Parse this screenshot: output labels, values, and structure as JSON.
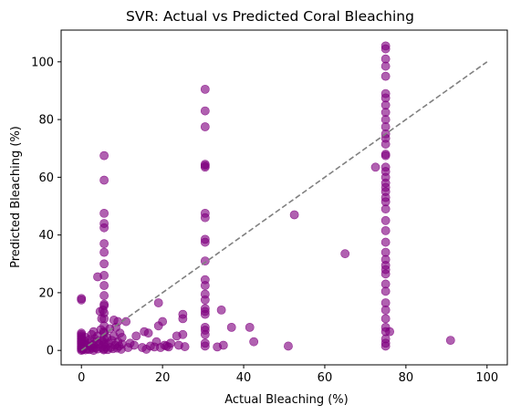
{
  "chart_data": {
    "type": "scatter",
    "title": "SVR: Actual vs Predicted Coral Bleaching",
    "xlabel": "Actual Bleaching (%)",
    "ylabel": "Predicted Bleaching (%)",
    "xlim": [
      -5,
      105
    ],
    "ylim": [
      -5,
      111
    ],
    "xticks": [
      0,
      20,
      40,
      60,
      80,
      100
    ],
    "yticks": [
      0,
      20,
      40,
      60,
      80,
      100
    ],
    "grid": false,
    "point_color": "#800080",
    "reference_line": {
      "x": [
        0,
        100
      ],
      "y": [
        0,
        100
      ],
      "color": "#808080",
      "style": "dashed"
    },
    "series": [
      {
        "points": [
          [
            0,
            0
          ],
          [
            0,
            0.5
          ],
          [
            0,
            1
          ],
          [
            0,
            1.5
          ],
          [
            0,
            2
          ],
          [
            0,
            2.5
          ],
          [
            0,
            3
          ],
          [
            0,
            3.5
          ],
          [
            0,
            4
          ],
          [
            0,
            4.5
          ],
          [
            0,
            5
          ],
          [
            0,
            5.5
          ],
          [
            0,
            6
          ],
          [
            0,
            17.5
          ],
          [
            0,
            18
          ],
          [
            0.3,
            0.3
          ],
          [
            0.5,
            1.2
          ],
          [
            0.6,
            2.2
          ],
          [
            0.8,
            3.2
          ],
          [
            1,
            0.2
          ],
          [
            1,
            4.5
          ],
          [
            1.2,
            1.8
          ],
          [
            1.5,
            0.5
          ],
          [
            1.8,
            2.5
          ],
          [
            2,
            0.3
          ],
          [
            2,
            3.8
          ],
          [
            2.2,
            1.5
          ],
          [
            2.5,
            5.5
          ],
          [
            2.8,
            0.8
          ],
          [
            3,
            0
          ],
          [
            3,
            2
          ],
          [
            3,
            6.5
          ],
          [
            3.3,
            4
          ],
          [
            3.5,
            1
          ],
          [
            3.7,
            3
          ],
          [
            4,
            25.5
          ],
          [
            4,
            0.5
          ],
          [
            4,
            5
          ],
          [
            4.3,
            2.2
          ],
          [
            4.6,
            13.5
          ],
          [
            4.8,
            7.2
          ],
          [
            5,
            1
          ],
          [
            5,
            3.5
          ],
          [
            5,
            11
          ],
          [
            5.3,
            14
          ],
          [
            5.5,
            0.2
          ],
          [
            5.5,
            2.8
          ],
          [
            5.5,
            6.5
          ],
          [
            5.6,
            67.5
          ],
          [
            5.6,
            59
          ],
          [
            5.6,
            47.5
          ],
          [
            5.6,
            44
          ],
          [
            5.6,
            42.5
          ],
          [
            5.6,
            37
          ],
          [
            5.6,
            34
          ],
          [
            5.6,
            30
          ],
          [
            5.6,
            26
          ],
          [
            5.6,
            22.5
          ],
          [
            5.6,
            19
          ],
          [
            5.6,
            16
          ],
          [
            5.6,
            15.5
          ],
          [
            5.6,
            13
          ],
          [
            5.6,
            11
          ],
          [
            5.6,
            8.5
          ],
          [
            5.6,
            6
          ],
          [
            5.6,
            4
          ],
          [
            5.6,
            2
          ],
          [
            5.6,
            0.5
          ],
          [
            6,
            1.2
          ],
          [
            6.3,
            4.5
          ],
          [
            6.5,
            0.3
          ],
          [
            6.8,
            2.5
          ],
          [
            7,
            7.5
          ],
          [
            7.2,
            1
          ],
          [
            7.5,
            3.5
          ],
          [
            7.8,
            0.6
          ],
          [
            8,
            5
          ],
          [
            8,
            10.5
          ],
          [
            8.3,
            1.8
          ],
          [
            8.5,
            8
          ],
          [
            8.8,
            0.8
          ],
          [
            9,
            3
          ],
          [
            9,
            10
          ],
          [
            9.3,
            1.5
          ],
          [
            9.5,
            6
          ],
          [
            9.8,
            0.4
          ],
          [
            10,
            2.2
          ],
          [
            10,
            4.5
          ],
          [
            11,
            10
          ],
          [
            11.5,
            1
          ],
          [
            12,
            2.5
          ],
          [
            13,
            1.8
          ],
          [
            13.5,
            5
          ],
          [
            15,
            1
          ],
          [
            15.5,
            6.5
          ],
          [
            16,
            0.4
          ],
          [
            16.5,
            6
          ],
          [
            17,
            1.5
          ],
          [
            18,
            1.2
          ],
          [
            18.5,
            3
          ],
          [
            19,
            16.5
          ],
          [
            19,
            8.5
          ],
          [
            19.5,
            1
          ],
          [
            20,
            10
          ],
          [
            20.5,
            1.8
          ],
          [
            21,
            1.5
          ],
          [
            21.5,
            1.2
          ],
          [
            22,
            2.5
          ],
          [
            23.5,
            5
          ],
          [
            24,
            1.8
          ],
          [
            25,
            5.5
          ],
          [
            25,
            11
          ],
          [
            25,
            12.5
          ],
          [
            25.5,
            1.3
          ],
          [
            30.5,
            90.5
          ],
          [
            30.5,
            83
          ],
          [
            30.5,
            77.5
          ],
          [
            30.5,
            64.5
          ],
          [
            30.5,
            64
          ],
          [
            30.5,
            63.5
          ],
          [
            30.5,
            47.5
          ],
          [
            30.5,
            46
          ],
          [
            30.5,
            38.5
          ],
          [
            30.5,
            37.5
          ],
          [
            30.5,
            31
          ],
          [
            30.5,
            24.5
          ],
          [
            30.5,
            22.5
          ],
          [
            30.5,
            19.5
          ],
          [
            30.5,
            17.5
          ],
          [
            30.5,
            14.5
          ],
          [
            30.5,
            13.5
          ],
          [
            30.5,
            12.5
          ],
          [
            30.5,
            8
          ],
          [
            30.5,
            7
          ],
          [
            30.5,
            5.5
          ],
          [
            30.5,
            2.5
          ],
          [
            30.5,
            1.5
          ],
          [
            33.5,
            1.2
          ],
          [
            34.5,
            14
          ],
          [
            35,
            1.8
          ],
          [
            37,
            8
          ],
          [
            41.5,
            8
          ],
          [
            42.5,
            3
          ],
          [
            51,
            1.5
          ],
          [
            52.5,
            47
          ],
          [
            65,
            33.5
          ],
          [
            72.5,
            63.5
          ],
          [
            75,
            105.5
          ],
          [
            75,
            104.5
          ],
          [
            75,
            101
          ],
          [
            75,
            98.5
          ],
          [
            75,
            95
          ],
          [
            75,
            89
          ],
          [
            75,
            87.5
          ],
          [
            75,
            85
          ],
          [
            75,
            82.5
          ],
          [
            75,
            80
          ],
          [
            75,
            77.5
          ],
          [
            75,
            75
          ],
          [
            75,
            73.5
          ],
          [
            75,
            71.5
          ],
          [
            75,
            68
          ],
          [
            75,
            67.5
          ],
          [
            75,
            63.5
          ],
          [
            75,
            62
          ],
          [
            75,
            60
          ],
          [
            75,
            58
          ],
          [
            75,
            56.5
          ],
          [
            75,
            55
          ],
          [
            75,
            53
          ],
          [
            75,
            51.5
          ],
          [
            75,
            49
          ],
          [
            75,
            45
          ],
          [
            75,
            41.5
          ],
          [
            75,
            37.5
          ],
          [
            75,
            34
          ],
          [
            75,
            31.5
          ],
          [
            75,
            29.5
          ],
          [
            75,
            28
          ],
          [
            75,
            26.5
          ],
          [
            75,
            23
          ],
          [
            75,
            20.5
          ],
          [
            75,
            16.5
          ],
          [
            75,
            14
          ],
          [
            75,
            11
          ],
          [
            75,
            8
          ],
          [
            75,
            6.5
          ],
          [
            75,
            4
          ],
          [
            75,
            2.5
          ],
          [
            75,
            1.5
          ],
          [
            76,
            6.5
          ],
          [
            91,
            3.5
          ]
        ]
      }
    ]
  }
}
